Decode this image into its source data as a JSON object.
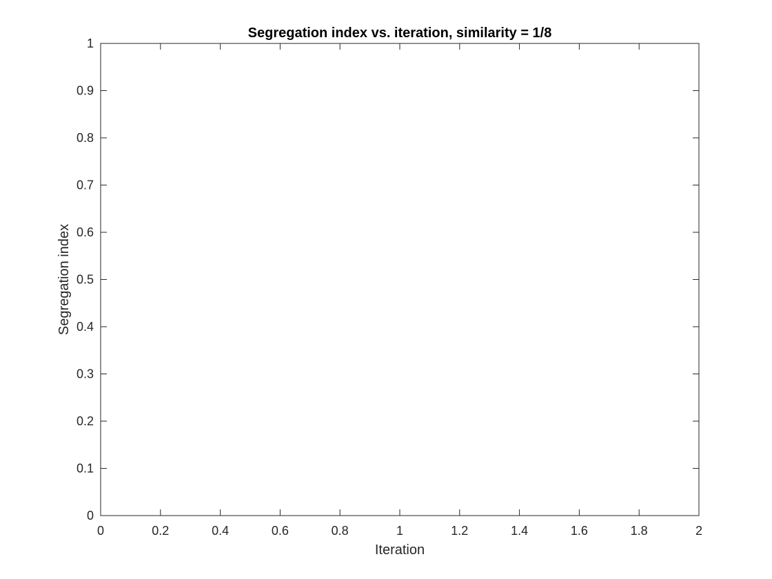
{
  "chart_data": {
    "type": "line",
    "title": "Segregation index vs. iteration, similarity = 1/8",
    "xlabel": "Iteration",
    "ylabel": "Segregation index",
    "xlim": [
      0,
      2
    ],
    "ylim": [
      0,
      1
    ],
    "xticks": [
      0,
      0.2,
      0.4,
      0.6,
      0.8,
      1,
      1.2,
      1.4,
      1.6,
      1.8,
      2
    ],
    "xtick_labels": [
      "0",
      "0.2",
      "0.4",
      "0.6",
      "0.8",
      "1",
      "1.2",
      "1.4",
      "1.6",
      "1.8",
      "2"
    ],
    "yticks": [
      0,
      0.1,
      0.2,
      0.3,
      0.4,
      0.5,
      0.6,
      0.7,
      0.8,
      0.9,
      1
    ],
    "ytick_labels": [
      "0",
      "0.1",
      "0.2",
      "0.3",
      "0.4",
      "0.5",
      "0.6",
      "0.7",
      "0.8",
      "0.9",
      "1"
    ],
    "grid": false,
    "box": true,
    "series": [],
    "colors": {
      "axis": "#262626",
      "title": "#000000",
      "background": "#ffffff"
    }
  }
}
